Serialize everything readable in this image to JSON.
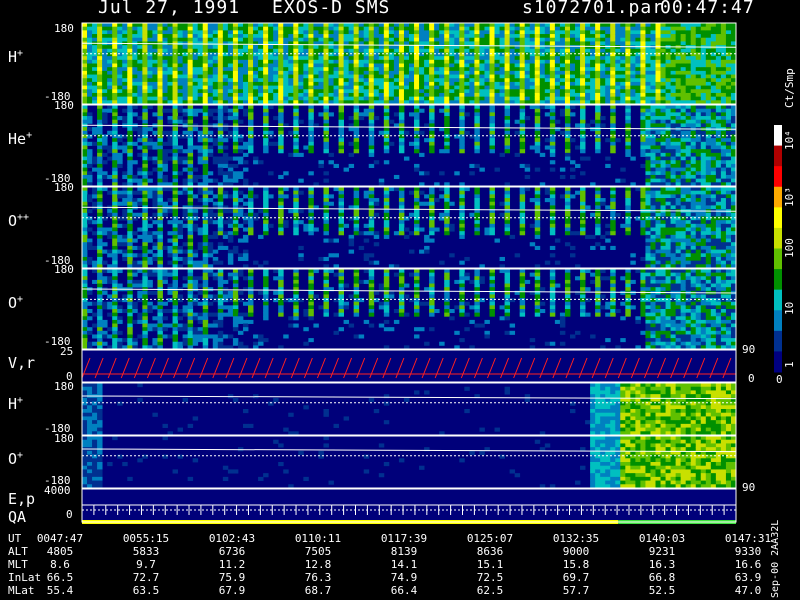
{
  "header": {
    "date": "Jul 27, 1991",
    "instrument": "EXOS-D SMS",
    "file": "s1072701.par",
    "time": "00:47:47"
  },
  "panels": [
    {
      "label": "H",
      "charge": "+",
      "ytop": "180",
      "ybot": "-180"
    },
    {
      "label": "He",
      "charge": "+",
      "ytop": "180",
      "ybot": "-180"
    },
    {
      "label": "O",
      "charge": "++",
      "ytop": "180",
      "ybot": "-180"
    },
    {
      "label": "O",
      "charge": "+",
      "ytop": "180",
      "ybot": "-180"
    },
    {
      "label": "V,r",
      "charge": "",
      "ytop": "25",
      "ybot": "0",
      "right": "90",
      "right2": "0"
    },
    {
      "label": "H",
      "charge": "+",
      "ytop": "180",
      "ybot": "-180"
    },
    {
      "label": "O",
      "charge": "+",
      "ytop": "180",
      "ybot": "-180",
      "right": "90"
    },
    {
      "label": "E,p",
      "label2": "QA",
      "ytop": "4000",
      "ybot": "0"
    }
  ],
  "colorbar": {
    "unit": "Ct/Smp",
    "ticks": [
      "10⁴",
      "10³",
      "100",
      "10",
      "1",
      "0"
    ],
    "colors": [
      "#ffffff",
      "#b00000",
      "#ff0000",
      "#ffaa00",
      "#ffff00",
      "#c8e000",
      "#60c000",
      "#009000",
      "#00c0c0",
      "#0080c0",
      "#003090",
      "#000080"
    ]
  },
  "footer": {
    "labels": [
      "UT",
      "ALT",
      "MLT",
      "InLat",
      "MLat"
    ],
    "columns": [
      [
        "0047:47",
        "4805",
        "8.6",
        "66.5",
        "55.4"
      ],
      [
        "0055:15",
        "5833",
        "9.7",
        "72.7",
        "63.5"
      ],
      [
        "0102:43",
        "6736",
        "11.2",
        "75.9",
        "67.9"
      ],
      [
        "0110:11",
        "7505",
        "12.8",
        "76.3",
        "68.7"
      ],
      [
        "0117:39",
        "8139",
        "14.1",
        "74.9",
        "66.4"
      ],
      [
        "0125:07",
        "8636",
        "15.1",
        "72.5",
        "62.5"
      ],
      [
        "0132:35",
        "9000",
        "15.8",
        "69.7",
        "57.7"
      ],
      [
        "0140:03",
        "9231",
        "16.3",
        "66.8",
        "52.5"
      ],
      [
        "0147:31",
        "9330",
        "16.6",
        "63.9",
        "47.0"
      ]
    ],
    "side_text": "Sep-00  2AA32L"
  },
  "chart_data": {
    "type": "heatmap",
    "title": "Jul 27, 1991   EXOS-D SMS",
    "x": [
      "0047:47",
      "0055:15",
      "0102:43",
      "0110:11",
      "0117:39",
      "0125:07",
      "0132:35",
      "0140:03",
      "0147:31"
    ],
    "series": [
      {
        "name": "H+",
        "ylim": [
          -180,
          180
        ]
      },
      {
        "name": "He+",
        "ylim": [
          -180,
          180
        ]
      },
      {
        "name": "O++",
        "ylim": [
          -180,
          180
        ]
      },
      {
        "name": "O+",
        "ylim": [
          -180,
          180
        ]
      },
      {
        "name": "V,r",
        "ylim": [
          0,
          25
        ]
      },
      {
        "name": "H+",
        "ylim": [
          -180,
          180
        ]
      },
      {
        "name": "O+",
        "ylim": [
          -180,
          180
        ]
      },
      {
        "name": "E,p",
        "ylim": [
          0,
          4000
        ]
      }
    ],
    "colorscale": "Ct/Smp, log 1 to 10^4"
  }
}
